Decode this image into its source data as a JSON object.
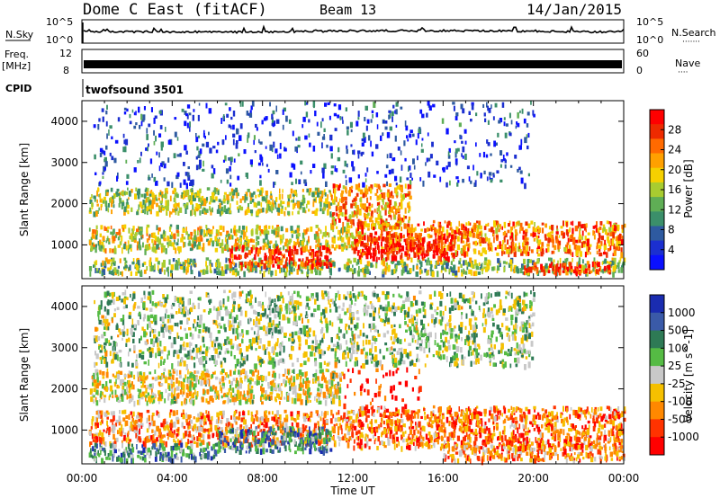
{
  "header": {
    "station": "Dome C East (fitACF)",
    "beam": "Beam 13",
    "date": "14/Jan/2015"
  },
  "nsky_panel": {
    "left_label": "N.Sky",
    "right_label": "N.Search",
    "right_dots": "·······",
    "left_ticks": [
      "10^5",
      "10^0"
    ],
    "right_ticks": [
      "10^5",
      "10^0"
    ]
  },
  "freq_panel": {
    "left_label_1": "Freq.",
    "left_label_2": "[MHz]",
    "left_ticks": [
      "12",
      "8"
    ],
    "right_label": "Nave",
    "right_dots": "····",
    "right_ticks": [
      "60",
      "0"
    ]
  },
  "cpid_panel": {
    "label": "CPID",
    "value": "twofsound 3501"
  },
  "chart_data": [
    {
      "type": "heatmap",
      "name": "power",
      "ylabel": "Slant Range [km]",
      "yticks": [
        1000,
        2000,
        3000,
        4000
      ],
      "ylim": [
        180,
        4500
      ],
      "xlim_hours": [
        0,
        24
      ],
      "colorbar": {
        "label": "Power [dB]",
        "ticks": [
          "28",
          "24",
          "20",
          "16",
          "12",
          "8",
          "4"
        ],
        "colors": [
          "#ff0000",
          "#ee2a00",
          "#ff6a00",
          "#ffa000",
          "#f5d000",
          "#a8cc30",
          "#5fae55",
          "#3b8f6a",
          "#2e5aa0",
          "#1b2fd0",
          "#0a10ff"
        ]
      },
      "bands": [
        {
          "t0": 0.3,
          "t1": 11.0,
          "r0": 1800,
          "r1": 2400,
          "level": 0.5
        },
        {
          "t0": 11.0,
          "t1": 14.5,
          "r0": 1500,
          "r1": 2500,
          "level": 0.7
        },
        {
          "t0": 0.3,
          "t1": 12.0,
          "r0": 900,
          "r1": 1500,
          "level": 0.55
        },
        {
          "t0": 12.0,
          "t1": 24.0,
          "r0": 800,
          "r1": 1600,
          "level": 0.75
        },
        {
          "t0": 0.3,
          "t1": 24.0,
          "r0": 350,
          "r1": 700,
          "level": 0.45
        },
        {
          "t0": 6.5,
          "t1": 11.0,
          "r0": 500,
          "r1": 1000,
          "level": 0.9
        },
        {
          "t0": 12.0,
          "t1": 16.5,
          "r0": 700,
          "r1": 1300,
          "level": 0.95
        },
        {
          "t0": 19.5,
          "t1": 23.5,
          "r0": 350,
          "r1": 600,
          "level": 0.9
        },
        {
          "t0": 0.5,
          "t1": 20.0,
          "r0": 2500,
          "r1": 4500,
          "level": 0.15
        }
      ]
    },
    {
      "type": "heatmap",
      "name": "velocity",
      "ylabel": "Slant Range [km]",
      "yticks": [
        1000,
        2000,
        3000,
        4000
      ],
      "ylim": [
        180,
        4500
      ],
      "xlim_hours": [
        0,
        24
      ],
      "colorbar": {
        "label": "Velocity [m s^-1]",
        "ticks": [
          "1000",
          "500",
          "100",
          "25",
          "-25",
          "-100",
          "-500",
          "-1000"
        ],
        "colors": [
          "#1a2cb0",
          "#3a5aa8",
          "#2e7a55",
          "#55bb44",
          "#c8c8c8",
          "#f5c000",
          "#ff8800",
          "#ff3300",
          "#ff0000"
        ]
      },
      "bands": [
        {
          "t0": 0.3,
          "t1": 11.5,
          "r0": 1700,
          "r1": 2500,
          "level": 0.45
        },
        {
          "t0": 11.5,
          "t1": 15.0,
          "r0": 1400,
          "r1": 2600,
          "level": 0.1
        },
        {
          "t0": 0.3,
          "t1": 12.0,
          "r0": 700,
          "r1": 1500,
          "level": 0.3
        },
        {
          "t0": 6.0,
          "t1": 11.0,
          "r0": 500,
          "r1": 1100,
          "level": 0.75
        },
        {
          "t0": 12.0,
          "t1": 24.0,
          "r0": 600,
          "r1": 1600,
          "level": 0.25
        },
        {
          "t0": 0.3,
          "t1": 6.0,
          "r0": 300,
          "r1": 700,
          "level": 0.7
        },
        {
          "t0": 16.0,
          "t1": 24.0,
          "r0": 300,
          "r1": 700,
          "level": 0.3
        },
        {
          "t0": 0.5,
          "t1": 20.0,
          "r0": 2600,
          "r1": 4400,
          "level": 0.55
        }
      ]
    }
  ],
  "time_axis": {
    "label": "Time UT",
    "ticks": [
      "00:00",
      "04:00",
      "08:00",
      "12:00",
      "16:00",
      "20:00",
      "00:00"
    ]
  }
}
